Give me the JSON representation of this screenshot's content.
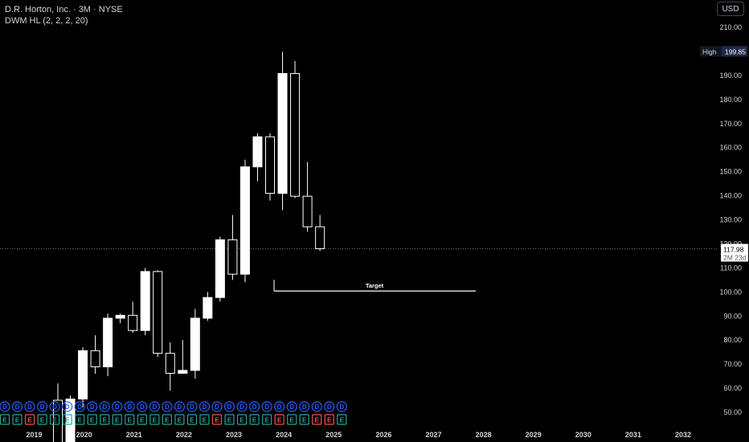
{
  "header": {
    "symbol": "D.R. Horton, Inc. · 3M · NYSE",
    "indicator": "DWM HL (2, 2, 2, 20)",
    "currency": "USD"
  },
  "price_labels": {
    "high_label": "High",
    "high_value": "199.85",
    "last_value": "117.98",
    "countdown": "2M 23d"
  },
  "annotation": {
    "text": "Target"
  },
  "colors": {
    "background": "#000000",
    "up": "#ffffff",
    "down": "#000000",
    "wick": "#ffffff",
    "dividend": "#2962ff",
    "earnings_green": "#26a69a",
    "earnings_red": "#ef5350",
    "earnings_pink": "#e91e63"
  },
  "chart_data": {
    "type": "candlestick",
    "y_ticks": [
      "210.00",
      "200.00",
      "190.00",
      "180.00",
      "170.00",
      "160.00",
      "150.00",
      "140.00",
      "130.00",
      "120.00",
      "110.00",
      "100.00",
      "90.00",
      "80.00",
      "70.00",
      "60.00",
      "50.00"
    ],
    "x_ticks": [
      "2019",
      "2020",
      "2021",
      "2022",
      "2023",
      "2024",
      "2025",
      "2026",
      "2027",
      "2028",
      "2029",
      "2030",
      "2031",
      "2032"
    ],
    "ylim": [
      45,
      215
    ],
    "candles": [
      {
        "q": "2020Q1",
        "o": 55.0,
        "h": 62.0,
        "l": 31.0,
        "c": 34.0
      },
      {
        "q": "2020Q2",
        "o": 34.0,
        "h": 57.0,
        "l": 31.0,
        "c": 55.5
      },
      {
        "q": "2020Q3",
        "o": 55.5,
        "h": 77.0,
        "l": 52.0,
        "c": 75.6
      },
      {
        "q": "2020Q4",
        "o": 75.6,
        "h": 82.0,
        "l": 66.0,
        "c": 68.9
      },
      {
        "q": "2021Q1",
        "o": 68.9,
        "h": 91.0,
        "l": 65.0,
        "c": 89.1
      },
      {
        "q": "2021Q2",
        "o": 89.1,
        "h": 91.0,
        "l": 87.0,
        "c": 90.3
      },
      {
        "q": "2021Q3",
        "o": 90.3,
        "h": 96.0,
        "l": 83.0,
        "c": 84.0
      },
      {
        "q": "2021Q4",
        "o": 84.0,
        "h": 110.0,
        "l": 82.0,
        "c": 108.5
      },
      {
        "q": "2022Q1",
        "o": 108.5,
        "h": 109.0,
        "l": 73.0,
        "c": 74.5
      },
      {
        "q": "2022Q2",
        "o": 74.5,
        "h": 79.0,
        "l": 59.0,
        "c": 66.2
      },
      {
        "q": "2022Q3",
        "o": 66.2,
        "h": 80.0,
        "l": 66.0,
        "c": 67.4
      },
      {
        "q": "2022Q4",
        "o": 67.4,
        "h": 93.0,
        "l": 64.0,
        "c": 89.1
      },
      {
        "q": "2023Q1",
        "o": 89.1,
        "h": 100.0,
        "l": 88.0,
        "c": 97.7
      },
      {
        "q": "2023Q2",
        "o": 97.7,
        "h": 123.0,
        "l": 96.0,
        "c": 121.7
      },
      {
        "q": "2023Q3",
        "o": 121.7,
        "h": 132.0,
        "l": 105.0,
        "c": 107.4
      },
      {
        "q": "2023Q4",
        "o": 107.4,
        "h": 155.0,
        "l": 104.0,
        "c": 152.0
      },
      {
        "q": "2024Q1",
        "o": 152.0,
        "h": 166.0,
        "l": 146.0,
        "c": 164.5
      },
      {
        "q": "2024Q2",
        "o": 164.5,
        "h": 166.0,
        "l": 138.0,
        "c": 141.0
      },
      {
        "q": "2024Q3",
        "o": 141.0,
        "h": 199.85,
        "l": 134.0,
        "c": 190.8
      },
      {
        "q": "2024Q4",
        "o": 190.8,
        "h": 196.0,
        "l": 139.0,
        "c": 139.8
      },
      {
        "q": "2025Q1",
        "o": 139.8,
        "h": 154.0,
        "l": 125.0,
        "c": 127.1
      },
      {
        "q": "2025Q2",
        "o": 127.1,
        "h": 132.0,
        "l": 117.0,
        "c": 117.98
      }
    ],
    "target_level": 100.4,
    "last_price": 117.98,
    "high": 199.85
  }
}
